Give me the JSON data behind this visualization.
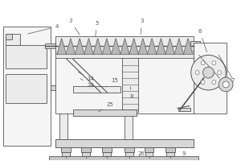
{
  "bg_color": "#ffffff",
  "lc": "#555555",
  "fill_white": "#f5f5f5",
  "fill_light": "#ececec",
  "fill_mid": "#d8d8d8",
  "fill_dark": "#c8c8c8",
  "screw_fill": "#b8b8b8",
  "figw": 3.0,
  "figh": 2.0,
  "dpi": 100,
  "xlim": [
    0,
    300
  ],
  "ylim": [
    0,
    200
  ]
}
